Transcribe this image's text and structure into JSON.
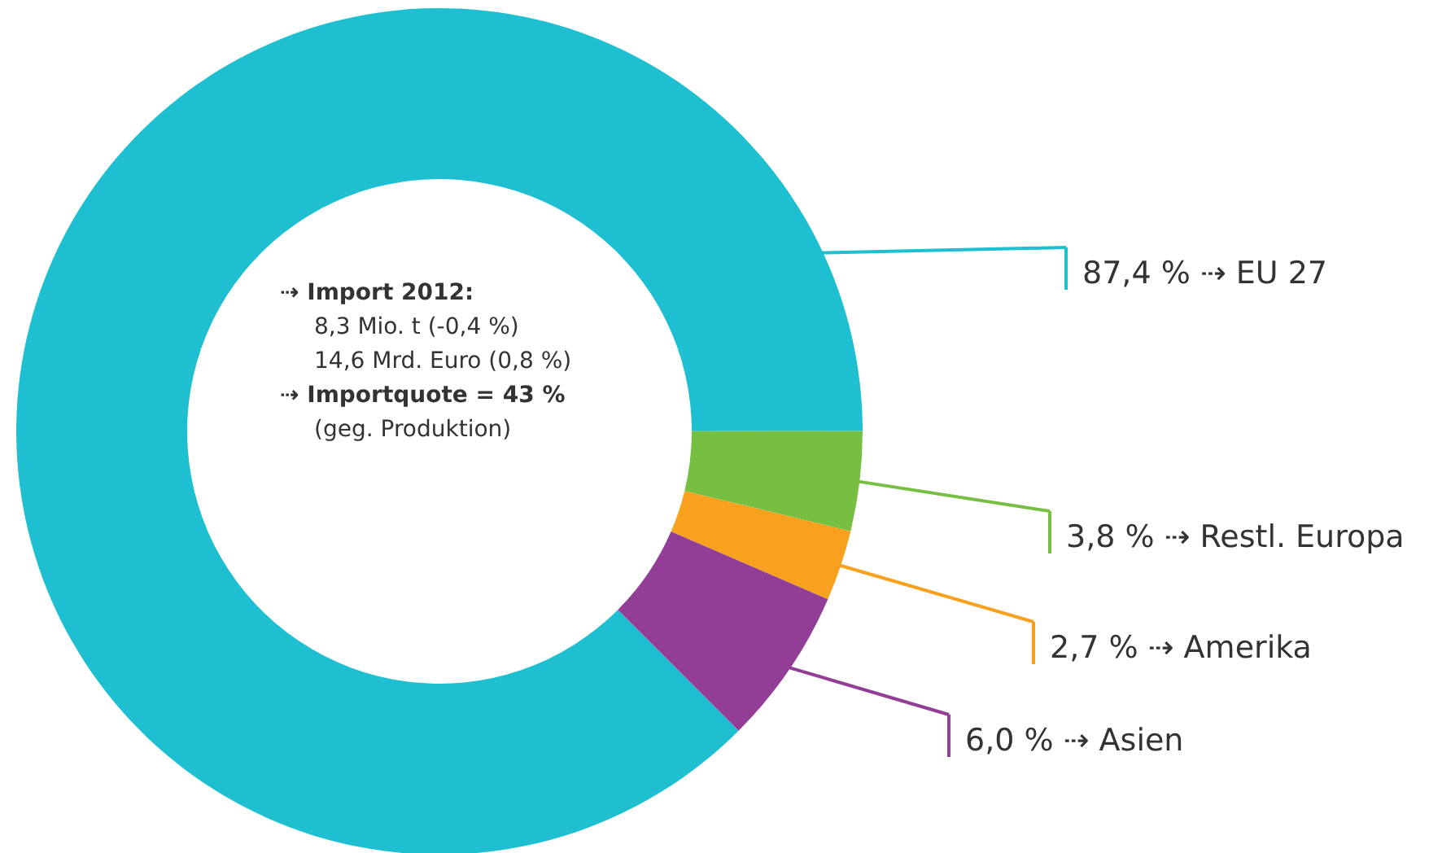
{
  "chart_data": {
    "type": "donut",
    "categories": [
      "EU 27",
      "Restl. Europa",
      "Amerika",
      "Asien"
    ],
    "values": [
      87.4,
      3.8,
      2.7,
      6.0
    ],
    "legend": "right",
    "colors": [
      "#1fbfd2",
      "#76bf43",
      "#f7a11e",
      "#923e97"
    ],
    "value_labels": [
      "87,4 % ⇢",
      "3,8 % ⇢",
      "2,7 % ⇢",
      "6,0 % ⇢"
    ],
    "annotations": [
      "⇢ Import 2012:",
      "8,3 Mio. t (-0,4 %)",
      "14,6 Mrd. Euro (0,8 %)",
      "⇢ Importquote = 43 %",
      "(geg. Produktion)"
    ]
  }
}
